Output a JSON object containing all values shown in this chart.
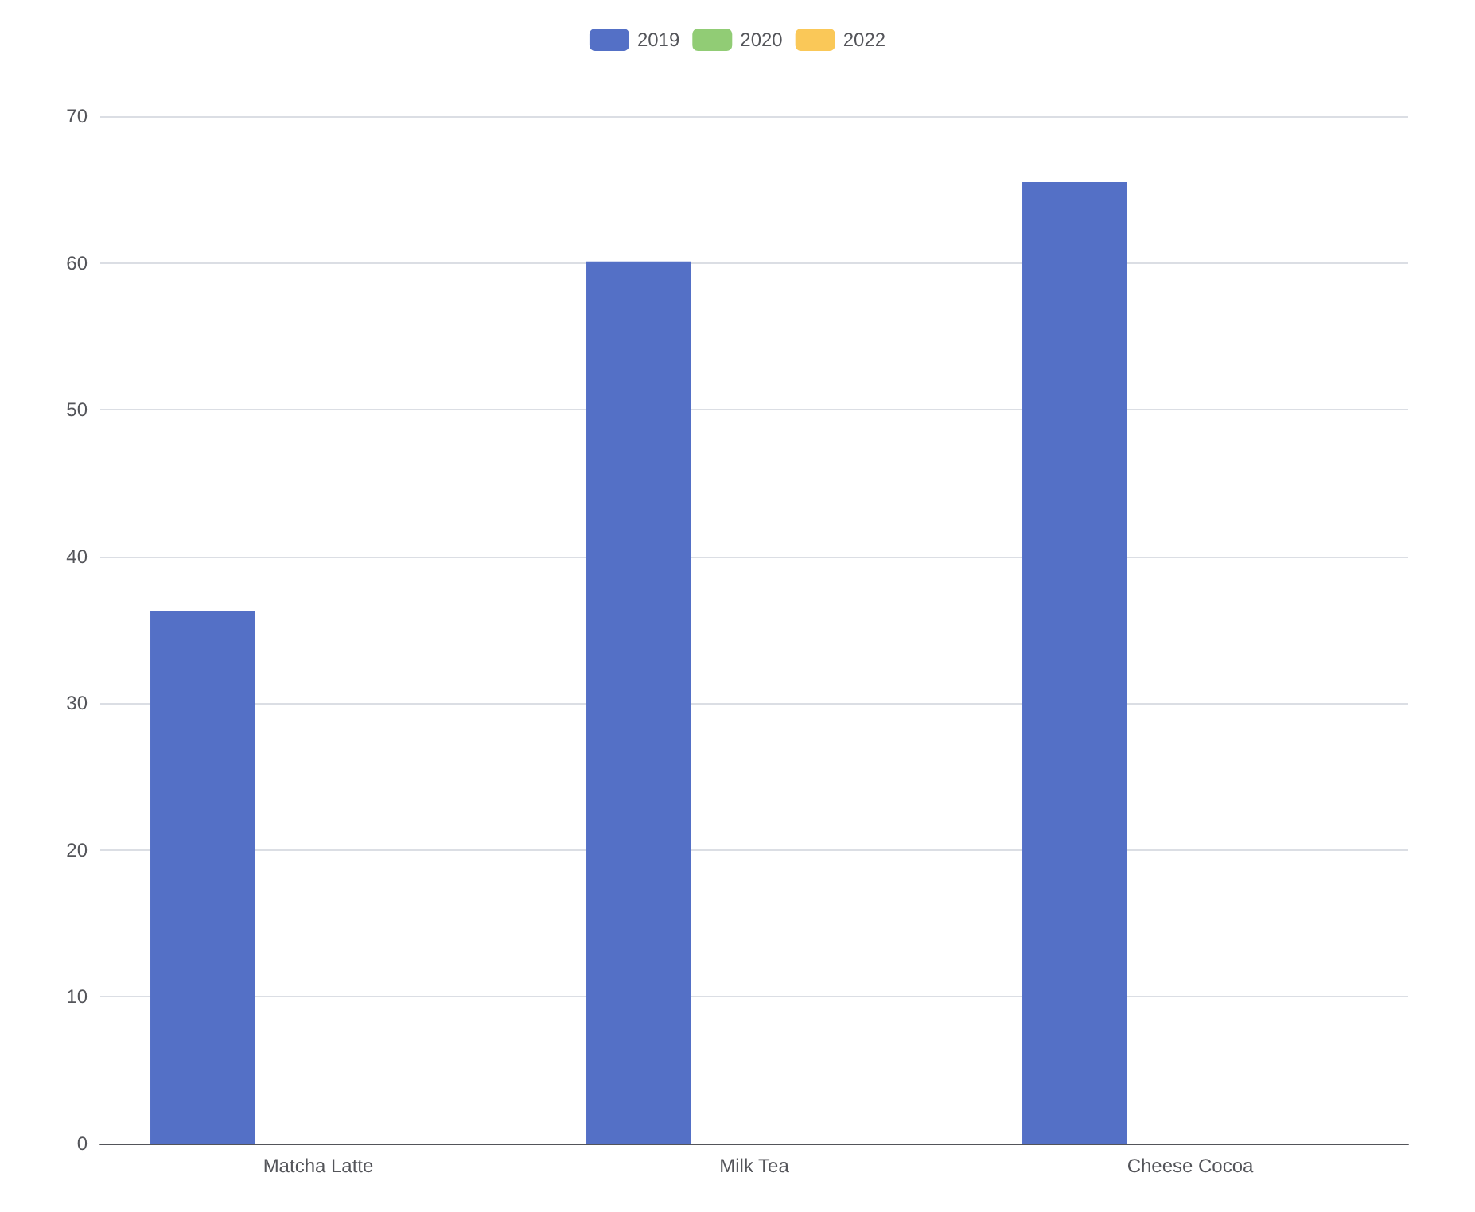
{
  "chart_data": {
    "type": "bar",
    "categories": [
      "Matcha Latte",
      "Milk Tea",
      "Cheese Cocoa"
    ],
    "series": [
      {
        "name": "2019",
        "color": "#5470c6",
        "values": [
          36.3,
          60.1,
          65.5
        ]
      },
      {
        "name": "2020",
        "color": "#91cc75",
        "values": [
          null,
          null,
          null
        ]
      },
      {
        "name": "2022",
        "color": "#fac858",
        "values": [
          null,
          null,
          null
        ]
      }
    ],
    "ylim": [
      0,
      70
    ],
    "yticks": [
      0,
      10,
      20,
      30,
      40,
      50,
      60,
      70
    ],
    "grid": "y",
    "legend": "top"
  }
}
